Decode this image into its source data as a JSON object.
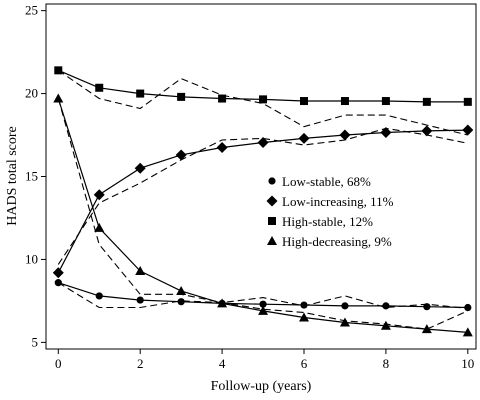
{
  "chart_data": {
    "type": "line",
    "title": "",
    "xlabel": "Follow-up (years)",
    "ylabel": "HADS total score",
    "xlim": [
      -0.3,
      10.2
    ],
    "ylim": [
      4.6,
      25.4
    ],
    "xticks": [
      0,
      2,
      4,
      6,
      8,
      10
    ],
    "yticks": [
      5,
      10,
      15,
      20,
      25
    ],
    "grid": false,
    "legend_position": "center-right",
    "x": [
      0,
      1,
      2,
      3,
      4,
      5,
      6,
      7,
      8,
      9,
      10
    ],
    "series": [
      {
        "name": "Low-stable, 68%",
        "marker": "circle",
        "fitted": [
          8.6,
          7.8,
          7.55,
          7.45,
          7.35,
          7.3,
          7.25,
          7.2,
          7.2,
          7.15,
          7.1
        ],
        "observed": [
          8.6,
          7.1,
          7.1,
          7.5,
          7.4,
          7.7,
          7.2,
          7.8,
          7.1,
          7.3,
          7.05
        ]
      },
      {
        "name": "Low-increasing, 11%",
        "marker": "diamond",
        "fitted": [
          9.2,
          13.9,
          15.5,
          16.3,
          16.75,
          17.05,
          17.3,
          17.5,
          17.65,
          17.75,
          17.8
        ],
        "observed": [
          9.7,
          13.4,
          14.6,
          16.0,
          17.2,
          17.3,
          16.9,
          17.2,
          17.9,
          17.5,
          17.0
        ]
      },
      {
        "name": "High-stable, 12%",
        "marker": "square",
        "fitted": [
          21.4,
          20.35,
          20.0,
          19.8,
          19.7,
          19.65,
          19.55,
          19.55,
          19.55,
          19.5,
          19.5
        ],
        "observed": [
          21.4,
          19.7,
          19.1,
          20.9,
          19.9,
          19.4,
          18.0,
          18.7,
          18.7,
          18.1,
          17.5
        ]
      },
      {
        "name": "High-decreasing, 9%",
        "marker": "triangle",
        "fitted": [
          19.7,
          11.9,
          9.3,
          8.1,
          7.35,
          6.9,
          6.5,
          6.2,
          6.0,
          5.8,
          5.6
        ],
        "observed": [
          19.7,
          10.9,
          7.9,
          7.9,
          7.4,
          7.0,
          6.8,
          6.3,
          6.1,
          5.8,
          6.9
        ]
      }
    ]
  }
}
